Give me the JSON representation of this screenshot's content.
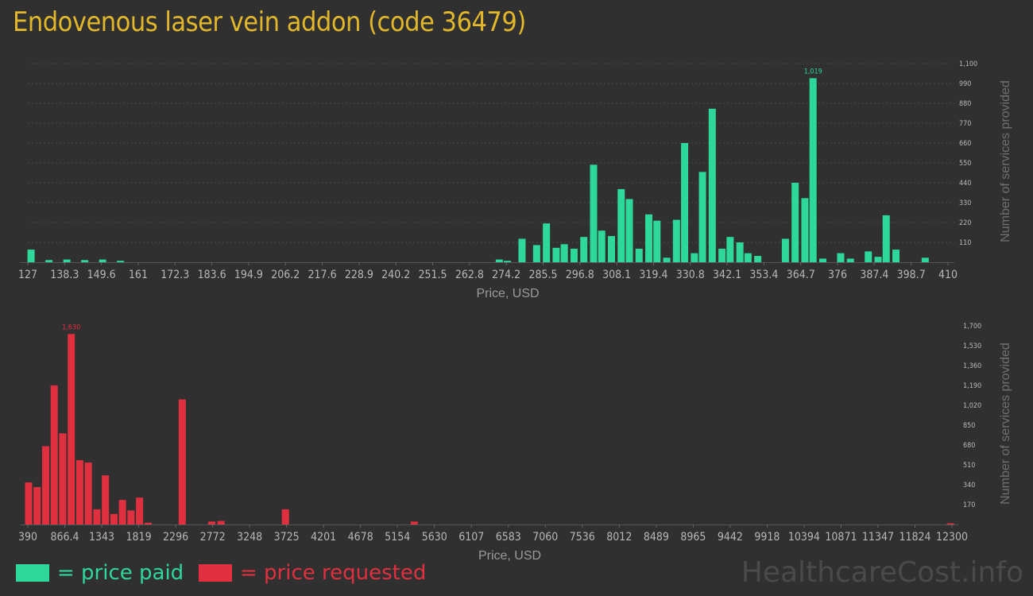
{
  "title": "Endovenous laser vein addon (code 36479)",
  "colors": {
    "paid": "#2ed89a",
    "requested": "#e0303f",
    "title": "#e2b72a",
    "grid": "#4a4a4a",
    "tick": "#b8b8b8"
  },
  "legend": {
    "paid": "= price paid",
    "requested": "= price requested"
  },
  "watermark": "HealthcareCost.info",
  "chart_data": [
    {
      "type": "bar",
      "series": [
        {
          "name": "price paid"
        }
      ],
      "xlabel": "Price, USD",
      "ylabel": "Number of services provided",
      "xlim": [
        127,
        410
      ],
      "x_tick_labels": [
        "127",
        "138.3",
        "149.6",
        "161",
        "172.3",
        "183.6",
        "194.9",
        "206.2",
        "217.6",
        "228.9",
        "240.2",
        "251.5",
        "262.8",
        "274.2",
        "285.5",
        "296.8",
        "308.1",
        "319.4",
        "330.8",
        "342.1",
        "353.4",
        "364.7",
        "376",
        "387.4",
        "398.7",
        "410"
      ],
      "ylim": [
        0,
        1100
      ],
      "y_tick_labels": [
        "110",
        "220",
        "330",
        "440",
        "550",
        "660",
        "770",
        "880",
        "990",
        "1,100"
      ],
      "max_label": "1,019",
      "grid": true,
      "bars": [
        [
          128,
          70
        ],
        [
          133.5,
          12
        ],
        [
          139,
          15
        ],
        [
          144.5,
          12
        ],
        [
          150,
          15
        ],
        [
          155.5,
          8
        ],
        [
          272,
          15
        ],
        [
          274.5,
          8
        ],
        [
          279,
          130
        ],
        [
          283.5,
          95
        ],
        [
          286.5,
          215
        ],
        [
          289.5,
          80
        ],
        [
          292,
          100
        ],
        [
          295,
          75
        ],
        [
          298,
          140
        ],
        [
          301,
          540
        ],
        [
          303.5,
          175
        ],
        [
          306.5,
          145
        ],
        [
          309.5,
          405
        ],
        [
          312,
          350
        ],
        [
          315,
          75
        ],
        [
          318,
          265
        ],
        [
          320.5,
          230
        ],
        [
          323.5,
          25
        ],
        [
          326.5,
          235
        ],
        [
          329,
          660
        ],
        [
          332,
          50
        ],
        [
          334.5,
          500
        ],
        [
          337.5,
          850
        ],
        [
          340.5,
          75
        ],
        [
          343,
          140
        ],
        [
          346,
          110
        ],
        [
          348.5,
          50
        ],
        [
          351.5,
          35
        ],
        [
          360,
          130
        ],
        [
          363,
          440
        ],
        [
          366,
          355
        ],
        [
          368.5,
          1019
        ],
        [
          371.5,
          20
        ],
        [
          377,
          50
        ],
        [
          380,
          20
        ],
        [
          385.5,
          60
        ],
        [
          388.5,
          30
        ],
        [
          391,
          260
        ],
        [
          394,
          70
        ],
        [
          403,
          25
        ]
      ]
    },
    {
      "type": "bar",
      "series": [
        {
          "name": "price requested"
        }
      ],
      "xlabel": "Price, USD",
      "ylabel": "Number of services provided",
      "xlim": [
        390,
        12300
      ],
      "x_tick_labels": [
        "390",
        "866.4",
        "1343",
        "1819",
        "2296",
        "2772",
        "3248",
        "3725",
        "4201",
        "4678",
        "5154",
        "5630",
        "6107",
        "6583",
        "7060",
        "7536",
        "8012",
        "8489",
        "8965",
        "9442",
        "9918",
        "10394",
        "10871",
        "11347",
        "11824",
        "12300"
      ],
      "ylim": [
        0,
        1700
      ],
      "y_tick_labels": [
        "170",
        "340",
        "510",
        "680",
        "850",
        "1,020",
        "1,190",
        "1,360",
        "1,530",
        "1,700"
      ],
      "max_label": "1,630",
      "grid": false,
      "bars": [
        [
          400,
          360
        ],
        [
          510,
          320
        ],
        [
          620,
          670
        ],
        [
          730,
          1190
        ],
        [
          840,
          780
        ],
        [
          950,
          1630
        ],
        [
          1060,
          550
        ],
        [
          1170,
          530
        ],
        [
          1280,
          130
        ],
        [
          1390,
          420
        ],
        [
          1500,
          90
        ],
        [
          1610,
          210
        ],
        [
          1720,
          120
        ],
        [
          1830,
          230
        ],
        [
          1940,
          15
        ],
        [
          2380,
          1070
        ],
        [
          2760,
          25
        ],
        [
          2880,
          30
        ],
        [
          3710,
          130
        ],
        [
          5370,
          25
        ],
        [
          12280,
          10
        ]
      ]
    }
  ]
}
